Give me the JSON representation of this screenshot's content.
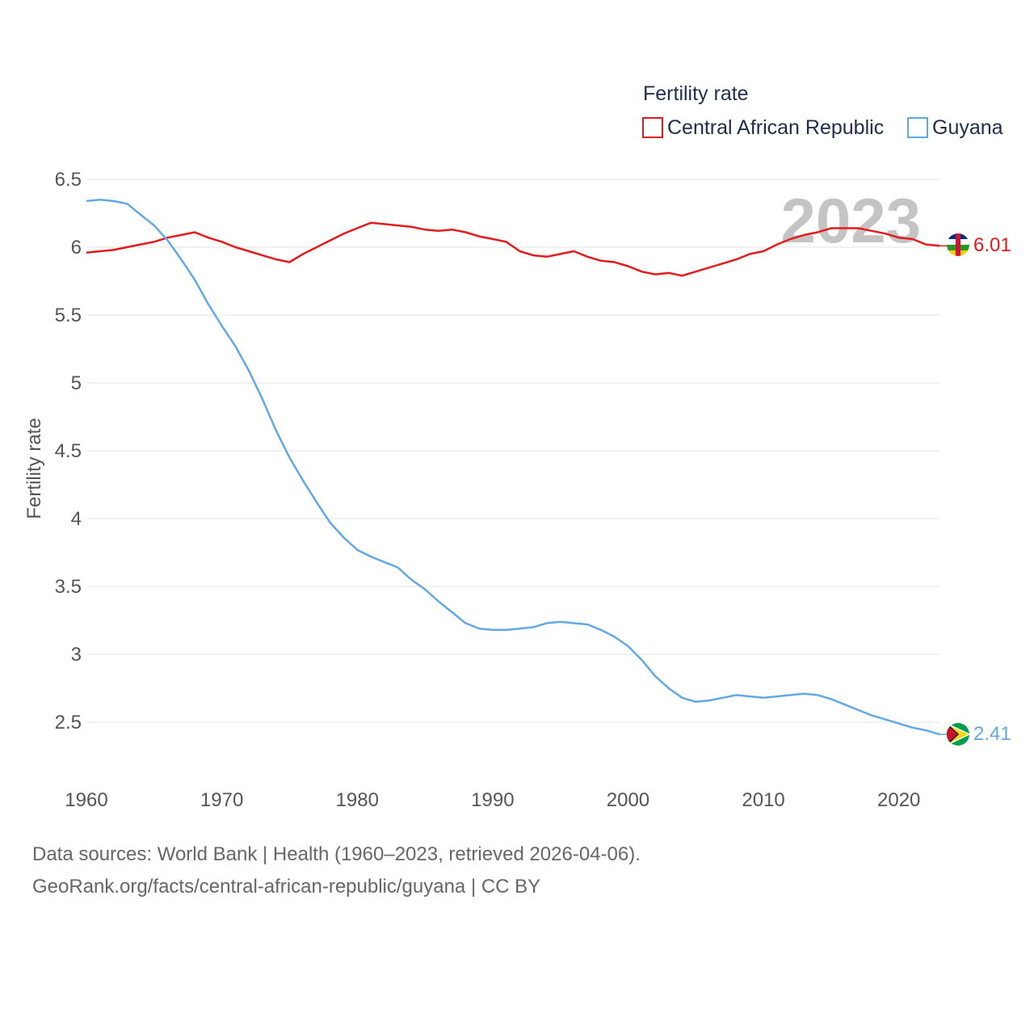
{
  "chart_data": {
    "type": "line",
    "legend_title": "Fertility rate",
    "ylabel": "Fertility rate",
    "xlim": [
      1960,
      2023
    ],
    "ylim": [
      2.3,
      6.5
    ],
    "yticks": [
      2.5,
      3,
      3.5,
      4,
      4.5,
      5,
      5.5,
      6,
      6.5
    ],
    "ytick_labels": [
      "2.5",
      "3",
      "3.5",
      "4",
      "4.5",
      "5",
      "5.5",
      "6",
      "6.5"
    ],
    "xticks": [
      1960,
      1970,
      1980,
      1990,
      2000,
      2010,
      2020
    ],
    "xtick_labels": [
      "1960",
      "1970",
      "1980",
      "1990",
      "2000",
      "2010",
      "2020"
    ],
    "year_label": "2023",
    "x": [
      1960,
      1961,
      1962,
      1963,
      1964,
      1965,
      1966,
      1967,
      1968,
      1969,
      1970,
      1971,
      1972,
      1973,
      1974,
      1975,
      1976,
      1977,
      1978,
      1979,
      1980,
      1981,
      1982,
      1983,
      1984,
      1985,
      1986,
      1987,
      1988,
      1989,
      1990,
      1991,
      1992,
      1993,
      1994,
      1995,
      1996,
      1997,
      1998,
      1999,
      2000,
      2001,
      2002,
      2003,
      2004,
      2005,
      2006,
      2007,
      2008,
      2009,
      2010,
      2011,
      2012,
      2013,
      2014,
      2015,
      2016,
      2017,
      2018,
      2019,
      2020,
      2021,
      2022,
      2023
    ],
    "series": [
      {
        "name": "Central African Republic",
        "color": "#e41a1c",
        "end_label": "6.01",
        "values": [
          5.96,
          5.97,
          5.98,
          6.0,
          6.02,
          6.04,
          6.07,
          6.09,
          6.11,
          6.07,
          6.04,
          6.0,
          5.97,
          5.94,
          5.91,
          5.89,
          5.95,
          6.0,
          6.05,
          6.1,
          6.14,
          6.18,
          6.17,
          6.16,
          6.15,
          6.13,
          6.12,
          6.13,
          6.11,
          6.08,
          6.06,
          6.04,
          5.97,
          5.94,
          5.93,
          5.95,
          5.97,
          5.93,
          5.9,
          5.89,
          5.86,
          5.82,
          5.8,
          5.81,
          5.79,
          5.82,
          5.85,
          5.88,
          5.91,
          5.95,
          5.97,
          6.02,
          6.06,
          6.09,
          6.11,
          6.14,
          6.14,
          6.14,
          6.12,
          6.1,
          6.07,
          6.06,
          6.02,
          6.01
        ]
      },
      {
        "name": "Guyana",
        "color": "#62a8e5",
        "end_label": "2.41",
        "values": [
          6.34,
          6.35,
          6.34,
          6.32,
          6.24,
          6.16,
          6.05,
          5.91,
          5.76,
          5.58,
          5.42,
          5.27,
          5.09,
          4.88,
          4.65,
          4.45,
          4.28,
          4.12,
          3.97,
          3.86,
          3.77,
          3.72,
          3.68,
          3.64,
          3.55,
          3.48,
          3.39,
          3.31,
          3.23,
          3.19,
          3.18,
          3.18,
          3.19,
          3.2,
          3.23,
          3.24,
          3.23,
          3.22,
          3.18,
          3.13,
          3.06,
          2.96,
          2.84,
          2.75,
          2.68,
          2.65,
          2.66,
          2.68,
          2.7,
          2.69,
          2.68,
          2.69,
          2.7,
          2.71,
          2.7,
          2.67,
          2.63,
          2.59,
          2.55,
          2.52,
          2.49,
          2.46,
          2.44,
          2.41
        ]
      }
    ]
  },
  "footer": {
    "line1": "Data sources: World Bank | Health (1960–2023, retrieved 2026-04-06).",
    "line2": "GeoRank.org/facts/central-african-republic/guyana | CC BY"
  }
}
